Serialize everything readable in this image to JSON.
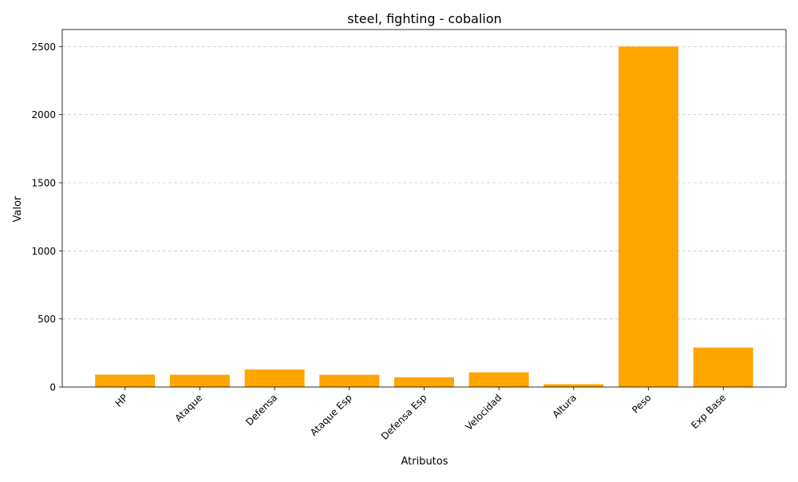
{
  "chart_data": {
    "type": "bar",
    "title": "steel, fighting - cobalion",
    "xlabel": "Atributos",
    "ylabel": "Valor",
    "categories": [
      "HP",
      "Ataque",
      "Defensa",
      "Ataque Esp",
      "Defensa Esp",
      "Velocidad",
      "Altura",
      "Peso",
      "Exp Base"
    ],
    "values": [
      91,
      90,
      129,
      90,
      72,
      108,
      21,
      2500,
      290
    ],
    "ylim": [
      0,
      2625
    ],
    "yticks": [
      0,
      500,
      1000,
      1500,
      2000,
      2500
    ],
    "grid": "y-dashed",
    "bar_color": "#FFA500",
    "grid_color": "#cccccc"
  }
}
